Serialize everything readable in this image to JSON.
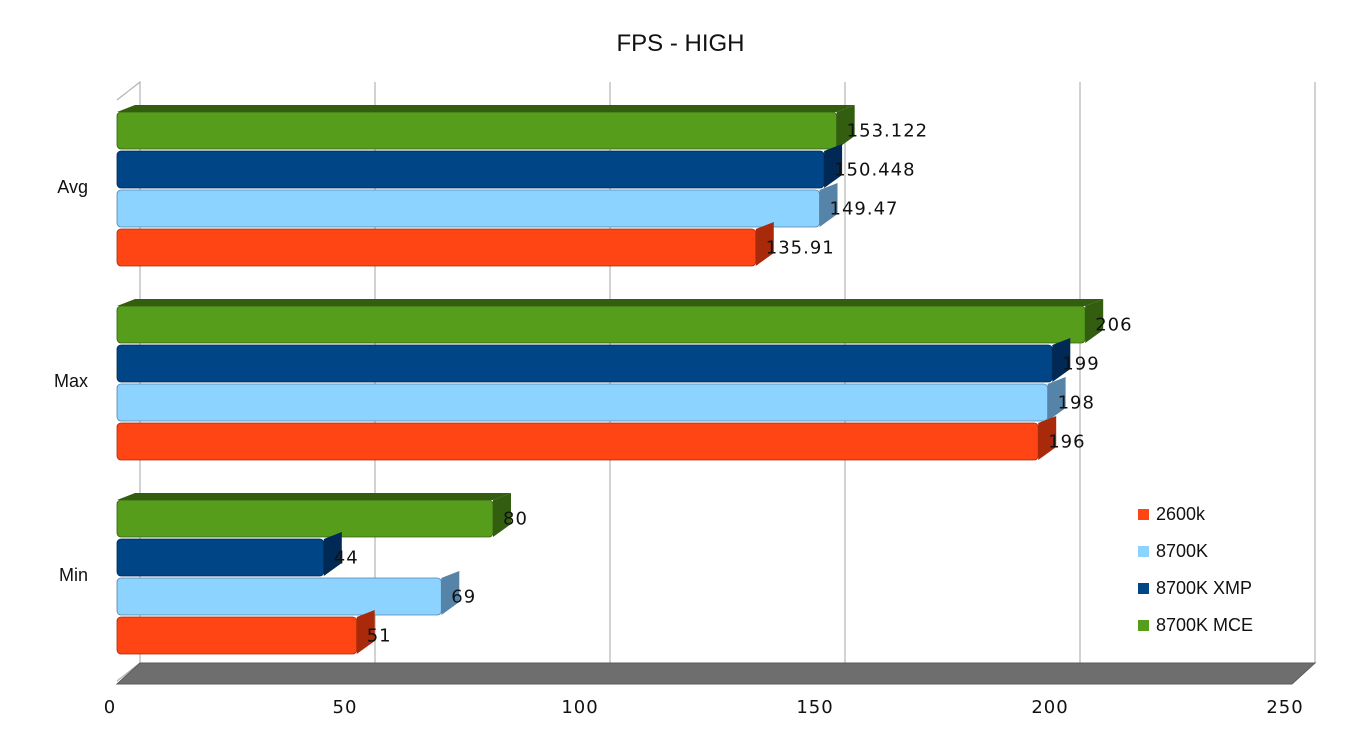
{
  "chart_data": {
    "type": "bar",
    "orientation": "horizontal",
    "title": "FPS - HIGH",
    "categories": [
      "Avg",
      "Max",
      "Min"
    ],
    "xlim": [
      0,
      250
    ],
    "x_ticks": [
      0,
      50,
      100,
      150,
      200,
      250
    ],
    "grid": true,
    "legend_position": "right",
    "series": [
      {
        "name": "2600k",
        "color": "#FF4514",
        "dark": "#A82A0A",
        "values": [
          135.91,
          196,
          51
        ],
        "labels": [
          "135.91",
          "196",
          "51"
        ]
      },
      {
        "name": "8700K",
        "color": "#8CD3FF",
        "dark": "#5584A8",
        "values": [
          149.47,
          198,
          69
        ],
        "labels": [
          "149.47",
          "198",
          "69"
        ]
      },
      {
        "name": "8700K XMP",
        "color": "#004586",
        "dark": "#002A55",
        "values": [
          150.448,
          199,
          44
        ],
        "labels": [
          "150.448",
          "199",
          "44"
        ]
      },
      {
        "name": "8700K MCE",
        "color": "#579D1C",
        "dark": "#335E10",
        "values": [
          153.122,
          206,
          80
        ],
        "labels": [
          "153.122",
          "206",
          "80"
        ]
      }
    ]
  }
}
